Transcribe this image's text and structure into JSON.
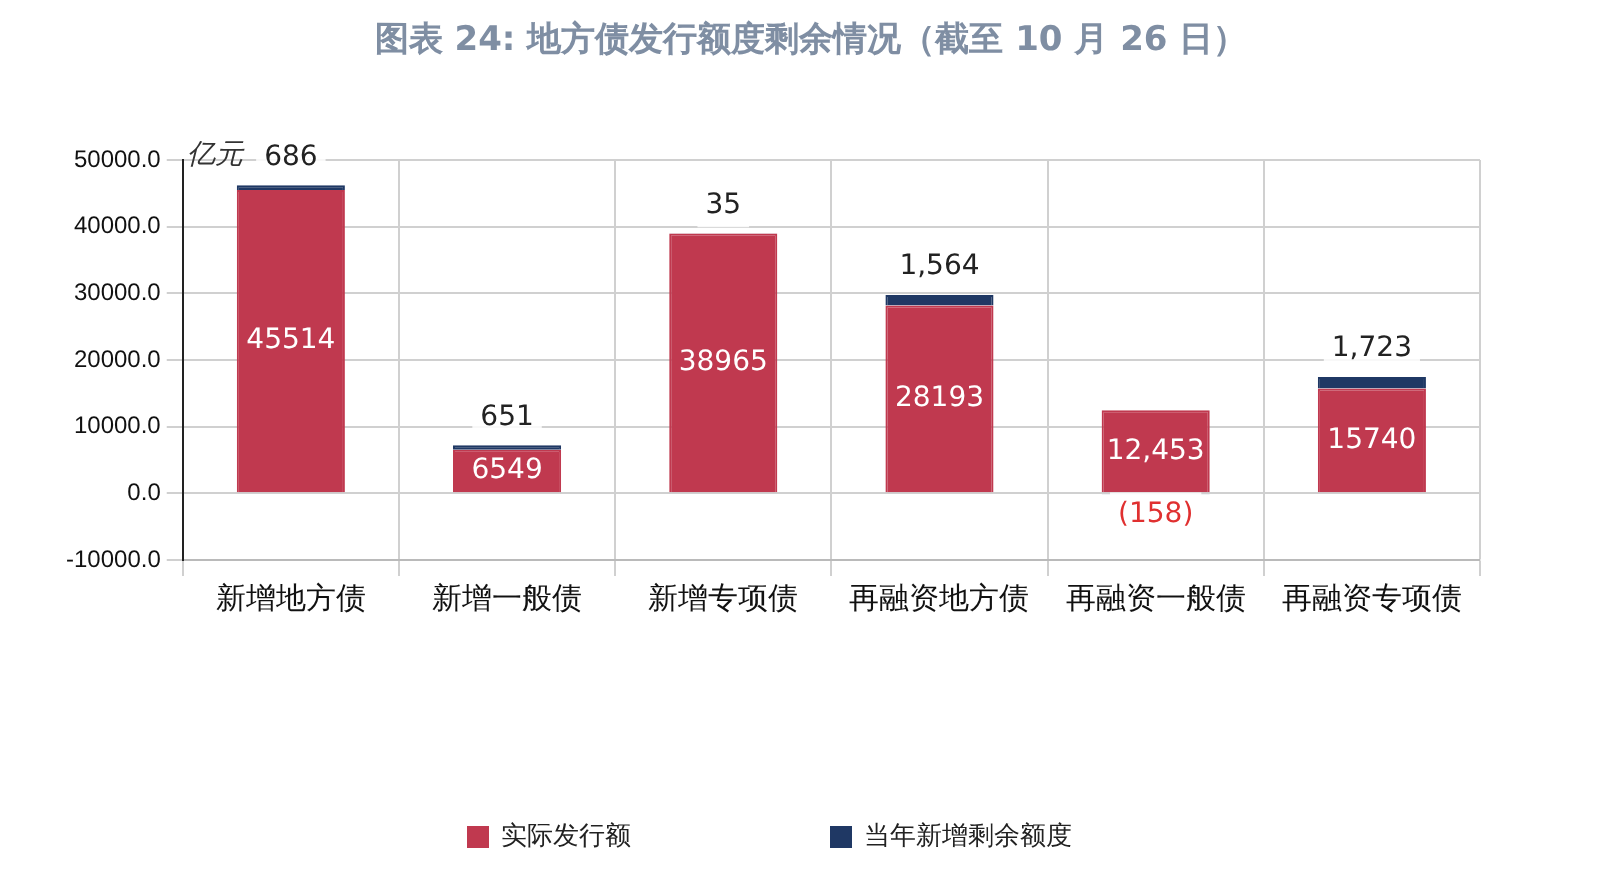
{
  "chart_data": {
    "type": "bar",
    "stacked": true,
    "title": "图表 24: 地方债发行额度剩余情况（截至 10 月 26 日）",
    "ylabel": "亿元",
    "categories": [
      "新增地方债",
      "新增一般债",
      "新增专项债",
      "再融资地方债",
      "再融资一般债",
      "再融资专项债"
    ],
    "series": [
      {
        "name": "实际发行额",
        "color": "#c0394f",
        "values": [
          45514,
          6549,
          38965,
          28193,
          12453,
          15740
        ],
        "value_labels": [
          "45514",
          "6549",
          "38965",
          "28193",
          "12,453",
          "15740"
        ]
      },
      {
        "name": "当年新增剩余额度",
        "color": "#1f3864",
        "values": [
          686,
          651,
          35,
          1564,
          -158,
          1723
        ],
        "value_labels": [
          "686",
          "651",
          "35",
          "1,564",
          "(158)",
          "1,723"
        ]
      }
    ],
    "ylim": [
      -10000,
      50000
    ],
    "yticks": [
      {
        "value": -10000,
        "label": "-10000.0"
      },
      {
        "value": 0,
        "label": "0.0"
      },
      {
        "value": 10000,
        "label": "10000.0"
      },
      {
        "value": 20000,
        "label": "20000.0"
      },
      {
        "value": 30000,
        "label": "30000.0"
      },
      {
        "value": 40000,
        "label": "40000.0"
      },
      {
        "value": 50000,
        "label": "50000.0"
      }
    ],
    "grid": true,
    "legend": "bottom"
  }
}
